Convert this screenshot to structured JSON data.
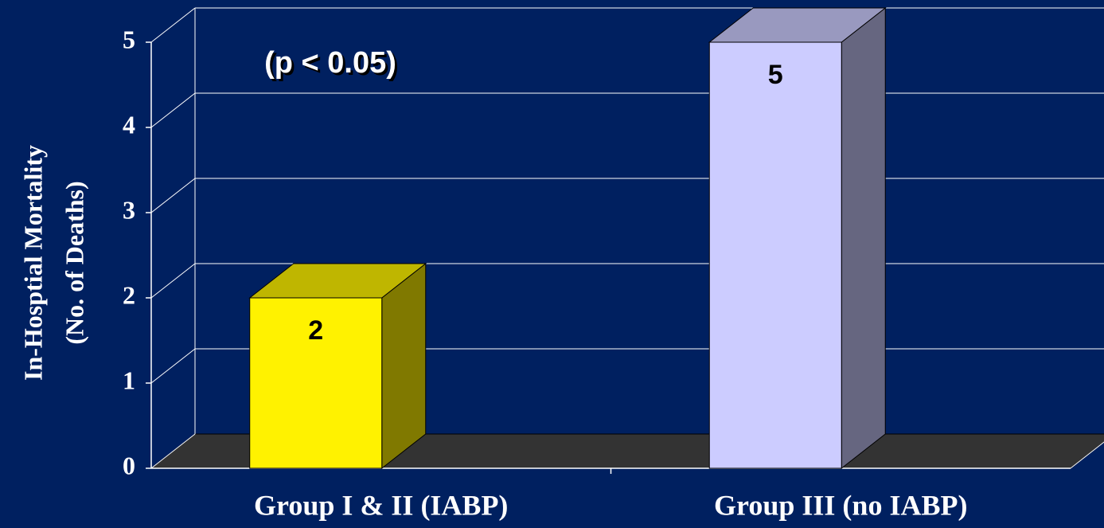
{
  "chart_data": {
    "type": "bar3d",
    "y_axis_label": [
      "In-Hosptial Mortality",
      "(No. of Deaths)"
    ],
    "annotation": "(p < 0.05)",
    "categories": [
      "Group I & II (IABP)",
      "Group III (no IABP)"
    ],
    "values": [
      2,
      5
    ],
    "colors": [
      "#fff200",
      "#ccccff"
    ],
    "ylim": [
      0,
      5
    ],
    "yticks": [
      0,
      1,
      2,
      3,
      4,
      5
    ],
    "grid": true
  }
}
